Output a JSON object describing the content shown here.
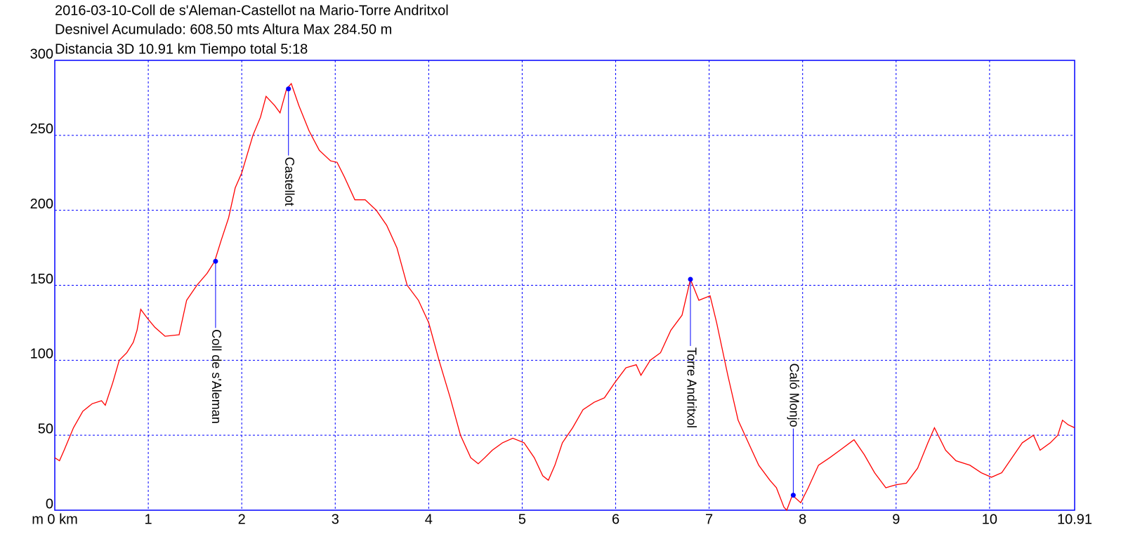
{
  "chart_data": {
    "type": "line",
    "title_lines": [
      "2016-03-10-Coll de s'Aleman-Castellot na Mario-Torre Andritxol",
      "Desnivel Acumulado: 608.50 mts  Altura Max 284.50 m",
      "Distancia 3D 10.91 km  Tiempo total 5:18"
    ],
    "xlim": [
      0,
      10.91
    ],
    "ylim": [
      0,
      300
    ],
    "xticks": [
      {
        "value": 0,
        "label": "m 0 km"
      },
      1,
      2,
      3,
      4,
      5,
      6,
      7,
      8,
      9,
      10,
      10.91
    ],
    "yticks": [
      0,
      50,
      100,
      150,
      200,
      250,
      300
    ],
    "grid": true,
    "grid_color": "#0000ff",
    "axis_color": "#0000ff",
    "series": [
      {
        "color": "#ff0000",
        "x": [
          0,
          0.05,
          0.1,
          0.2,
          0.3,
          0.4,
          0.5,
          0.54,
          0.62,
          0.69,
          0.77,
          0.84,
          0.88,
          0.92,
          0.99,
          1.07,
          1.18,
          1.33,
          1.41,
          1.52,
          1.63,
          1.71,
          1.78,
          1.86,
          1.93,
          2.0,
          2.12,
          2.2,
          2.26,
          2.35,
          2.41,
          2.48,
          2.53,
          2.61,
          2.72,
          2.83,
          2.95,
          3.02,
          3.1,
          3.21,
          3.32,
          3.44,
          3.55,
          3.66,
          3.77,
          3.89,
          4.0,
          4.11,
          4.23,
          4.34,
          4.45,
          4.53,
          4.6,
          4.68,
          4.79,
          4.9,
          5.02,
          5.13,
          5.22,
          5.28,
          5.35,
          5.43,
          5.54,
          5.65,
          5.77,
          5.88,
          5.99,
          6.11,
          6.22,
          6.27,
          6.37,
          6.48,
          6.59,
          6.71,
          6.8,
          6.89,
          7.01,
          7.08,
          7.2,
          7.31,
          7.42,
          7.53,
          7.65,
          7.72,
          7.8,
          7.83,
          7.89,
          7.98,
          8.06,
          8.17,
          8.29,
          8.4,
          8.55,
          8.66,
          8.77,
          8.89,
          9.0,
          9.11,
          9.23,
          9.34,
          9.41,
          9.53,
          9.64,
          9.79,
          9.91,
          10.02,
          10.13,
          10.24,
          10.35,
          10.47,
          10.54,
          10.65,
          10.73,
          10.78,
          10.84,
          10.91
        ],
        "values": [
          35,
          33,
          40,
          55,
          66,
          71,
          73,
          70,
          85,
          100,
          105,
          112,
          120,
          134,
          128,
          122,
          116,
          117,
          140,
          150,
          158,
          166,
          180,
          195,
          215,
          225,
          250,
          262,
          276,
          270,
          265,
          281,
          284.5,
          270,
          253,
          240,
          233,
          232,
          222,
          207,
          207,
          200,
          190,
          175,
          150,
          140,
          125,
          100,
          75,
          50,
          35,
          31,
          35,
          40,
          45,
          48,
          45,
          35,
          23,
          20,
          30,
          45,
          55,
          67,
          72,
          75,
          85,
          95,
          97,
          90,
          100,
          105,
          120,
          130,
          154,
          140,
          143,
          125,
          90,
          60,
          45,
          30,
          20,
          15,
          2,
          0,
          10,
          5,
          15,
          30,
          35,
          40,
          47,
          37,
          25,
          15,
          17,
          18,
          28,
          45,
          55,
          40,
          33,
          30,
          25,
          22,
          25,
          35,
          45,
          50,
          40,
          45,
          50,
          60,
          57,
          55
        ]
      }
    ],
    "waypoint_color": "#0000ff",
    "waypoints": [
      {
        "name": "Coll de s'Aleman",
        "x": 1.72,
        "y": 166
      },
      {
        "name": "Castellot",
        "x": 2.5,
        "y": 281
      },
      {
        "name": "Torre Andritxol",
        "x": 6.8,
        "y": 154
      },
      {
        "name": "Caló Monjo",
        "x": 7.9,
        "y": 10
      }
    ]
  }
}
